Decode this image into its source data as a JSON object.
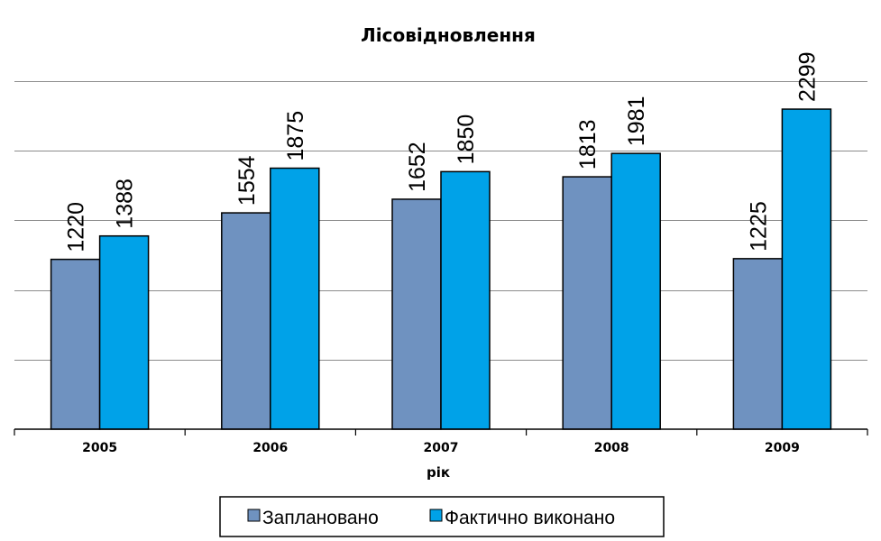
{
  "chart_data": {
    "type": "bar",
    "title": "Лісовідновлення",
    "xlabel": "рік",
    "ylabel": "",
    "categories": [
      "2005",
      "2006",
      "2007",
      "2008",
      "2009"
    ],
    "series": [
      {
        "name": "Заплановано",
        "values": [
          1220,
          1554,
          1652,
          1813,
          1225
        ],
        "color": "#6F92C0"
      },
      {
        "name": "Фактично виконано",
        "values": [
          1388,
          1875,
          1850,
          1981,
          2299
        ],
        "color": "#00A2E8"
      }
    ],
    "ylim": [
      0,
      2500
    ],
    "y_gridline_step": 500,
    "y_tick_labels_shown": false,
    "grid": true,
    "legend_position": "bottom"
  }
}
